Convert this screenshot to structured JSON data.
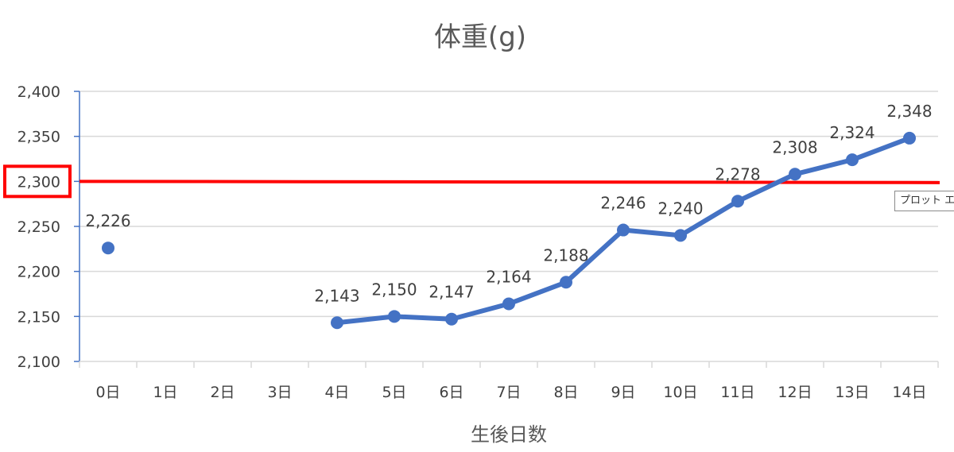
{
  "chart_data": {
    "type": "line",
    "title": "体重(g)",
    "xlabel": "生後日数",
    "ylabel": "",
    "ylim": [
      2100,
      2400
    ],
    "yticks": [
      "2,100",
      "2,150",
      "2,200",
      "2,250",
      "2,300",
      "2,350",
      "2,400"
    ],
    "yticks_values": [
      2100,
      2150,
      2200,
      2250,
      2300,
      2350,
      2400
    ],
    "categories": [
      "0日",
      "1日",
      "2日",
      "3日",
      "4日",
      "5日",
      "6日",
      "7日",
      "8日",
      "9日",
      "10日",
      "11日",
      "12日",
      "13日",
      "14日"
    ],
    "series": [
      {
        "values": [
          2226,
          null,
          null,
          null,
          2143,
          2150,
          2147,
          2164,
          2188,
          2246,
          2240,
          2278,
          2308,
          2324,
          2348
        ],
        "labels": [
          "2,226",
          "",
          "",
          "",
          "2,143",
          "2,150",
          "2,147",
          "2,164",
          "2,188",
          "2,246",
          "2,240",
          "2,278",
          "2,308",
          "2,324",
          "2,348"
        ]
      }
    ],
    "reference_line": {
      "value": 2300
    },
    "highlighted_tick": "2,300",
    "grid": true,
    "colors": {
      "series": "#4472C4",
      "reference": "#FF0000",
      "grid": "#d9d9d9",
      "axis": "#4472C4"
    }
  },
  "tooltip": {
    "text": "プロット エリア"
  }
}
